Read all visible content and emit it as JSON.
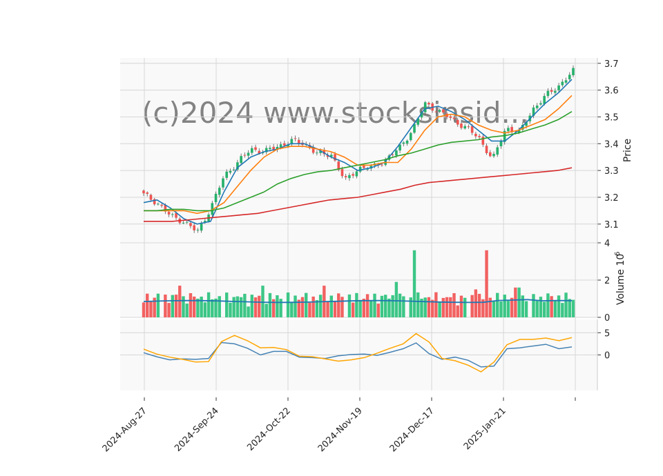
{
  "chart_data": {
    "type": "candlestick",
    "watermark": "(c)2024 www.stocksinsid...",
    "x_tick_labels": [
      "2024-Aug-27",
      "2024-Sep-24",
      "2024-Oct-22",
      "2024-Nov-19",
      "2024-Dec-17",
      "2025-Jan-21"
    ],
    "price_panel": {
      "ylabel": "Price",
      "ylim": [
        3.03,
        3.72
      ],
      "ticks": [
        3.1,
        3.2,
        3.3,
        3.4,
        3.5,
        3.6,
        3.7
      ],
      "ohlc_close_anchors": [
        3.21,
        3.18,
        3.13,
        3.11,
        3.07,
        3.16,
        3.28,
        3.33,
        3.38,
        3.37,
        3.39,
        3.41,
        3.4,
        3.36,
        3.36,
        3.26,
        3.31,
        3.31,
        3.34,
        3.38,
        3.45,
        3.55,
        3.52,
        3.49,
        3.46,
        3.42,
        3.34,
        3.46,
        3.44,
        3.53,
        3.58,
        3.62,
        3.67
      ],
      "ma_series": [
        {
          "color": "#1f77b4",
          "values": [
            3.18,
            3.19,
            3.16,
            3.12,
            3.1,
            3.11,
            3.22,
            3.31,
            3.35,
            3.37,
            3.38,
            3.4,
            3.4,
            3.38,
            3.35,
            3.33,
            3.3,
            3.31,
            3.33,
            3.39,
            3.46,
            3.53,
            3.54,
            3.52,
            3.49,
            3.45,
            3.41,
            3.41,
            3.45,
            3.5,
            3.55,
            3.59,
            3.64
          ]
        },
        {
          "color": "#ff7f0e",
          "values": [
            3.15,
            3.15,
            3.15,
            3.15,
            3.14,
            3.15,
            3.18,
            3.24,
            3.3,
            3.35,
            3.38,
            3.39,
            3.39,
            3.38,
            3.37,
            3.35,
            3.32,
            3.32,
            3.33,
            3.33,
            3.38,
            3.45,
            3.5,
            3.51,
            3.5,
            3.47,
            3.45,
            3.44,
            3.45,
            3.47,
            3.49,
            3.53,
            3.58
          ]
        },
        {
          "color": "#2ca02c",
          "values": [
            3.15,
            3.15,
            3.155,
            3.155,
            3.15,
            3.15,
            3.16,
            3.18,
            3.2,
            3.22,
            3.25,
            3.27,
            3.285,
            3.295,
            3.3,
            3.31,
            3.32,
            3.33,
            3.34,
            3.355,
            3.365,
            3.38,
            3.395,
            3.405,
            3.41,
            3.415,
            3.425,
            3.43,
            3.44,
            3.455,
            3.47,
            3.49,
            3.52
          ]
        },
        {
          "color": "#d62728",
          "values": [
            3.11,
            3.11,
            3.11,
            3.115,
            3.12,
            3.125,
            3.13,
            3.135,
            3.14,
            3.15,
            3.16,
            3.17,
            3.18,
            3.19,
            3.195,
            3.2,
            3.21,
            3.22,
            3.23,
            3.245,
            3.255,
            3.26,
            3.265,
            3.27,
            3.275,
            3.28,
            3.285,
            3.29,
            3.295,
            3.3,
            3.31
          ]
        }
      ]
    },
    "volume_panel": {
      "ylabel": "Volume  10^6",
      "ylim": [
        0,
        4
      ],
      "ticks": [
        0,
        2,
        4
      ],
      "ma_value_approx": 0.85,
      "spikes": [
        {
          "at": 0.63,
          "value": 3.6
        },
        {
          "at": 0.8,
          "value": 3.6
        }
      ]
    },
    "oscillator_panel": {
      "ylim": [
        -8,
        8
      ],
      "ticks": [
        0,
        5
      ],
      "series": [
        {
          "color": "#4682b4",
          "values": [
            0.5,
            -0.4,
            -1.1,
            -0.9,
            -1.0,
            -0.8,
            2.8,
            2.5,
            1.5,
            0.0,
            0.8,
            0.8,
            -0.5,
            -0.6,
            -0.8,
            -0.2,
            0.1,
            0.2,
            -0.1,
            0.6,
            1.4,
            2.7,
            0.3,
            -1.0,
            -0.5,
            -1.2,
            -2.7,
            -2.5,
            1.4,
            1.6,
            2.0,
            2.4,
            1.4,
            1.8
          ]
        },
        {
          "color": "#ffa500",
          "values": [
            1.3,
            0.2,
            -0.5,
            -1.0,
            -1.6,
            -1.5,
            3.0,
            4.4,
            3.2,
            1.6,
            1.7,
            1.2,
            -0.3,
            -0.4,
            -0.9,
            -1.4,
            -1.1,
            -0.6,
            0.4,
            1.5,
            2.5,
            4.8,
            2.9,
            -0.8,
            -1.3,
            -2.3,
            -3.8,
            -1.6,
            2.3,
            3.5,
            3.5,
            3.8,
            3.2,
            3.9
          ]
        }
      ]
    }
  }
}
